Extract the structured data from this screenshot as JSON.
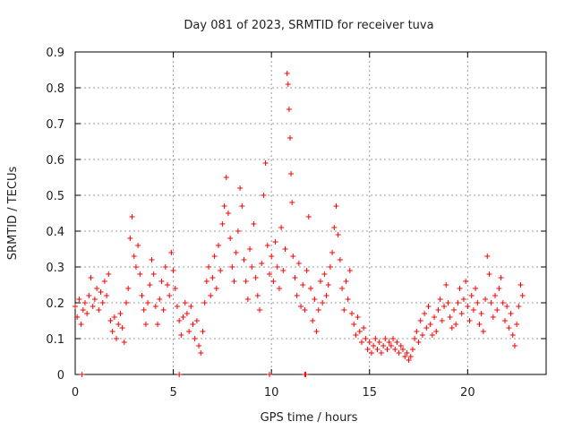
{
  "chart_data": {
    "type": "scatter",
    "title": "Day 081 of 2023, SRMTID for receiver tuva",
    "xlabel": "GPS time / hours",
    "ylabel": "SRMTID / TECUs",
    "xlim": [
      0,
      24
    ],
    "ylim": [
      0,
      0.9
    ],
    "xticks": [
      0,
      5,
      10,
      15,
      20
    ],
    "yticks": [
      0,
      0.1,
      0.2,
      0.3,
      0.4,
      0.5,
      0.6,
      0.7,
      0.8,
      0.9
    ],
    "grid": true,
    "marker": "+",
    "series": [
      {
        "name": "SRMTID",
        "color": "#ff0000",
        "points": [
          [
            0.0,
            0.19
          ],
          [
            0.1,
            0.16
          ],
          [
            0.2,
            0.21
          ],
          [
            0.3,
            0.14
          ],
          [
            0.4,
            0.18
          ],
          [
            0.5,
            0.2
          ],
          [
            0.6,
            0.17
          ],
          [
            0.7,
            0.22
          ],
          [
            0.8,
            0.27
          ],
          [
            0.9,
            0.19
          ],
          [
            1.0,
            0.21
          ],
          [
            1.1,
            0.24
          ],
          [
            1.2,
            0.18
          ],
          [
            1.3,
            0.23
          ],
          [
            1.4,
            0.2
          ],
          [
            1.5,
            0.26
          ],
          [
            1.6,
            0.22
          ],
          [
            1.7,
            0.28
          ],
          [
            1.8,
            0.15
          ],
          [
            1.9,
            0.12
          ],
          [
            2.0,
            0.16
          ],
          [
            2.1,
            0.1
          ],
          [
            2.2,
            0.14
          ],
          [
            2.3,
            0.17
          ],
          [
            2.4,
            0.13
          ],
          [
            2.5,
            0.09
          ],
          [
            2.6,
            0.2
          ],
          [
            2.7,
            0.24
          ],
          [
            2.8,
            0.38
          ],
          [
            2.9,
            0.44
          ],
          [
            3.0,
            0.33
          ],
          [
            3.1,
            0.3
          ],
          [
            3.2,
            0.36
          ],
          [
            3.3,
            0.28
          ],
          [
            3.4,
            0.22
          ],
          [
            3.5,
            0.18
          ],
          [
            3.6,
            0.14
          ],
          [
            3.7,
            0.2
          ],
          [
            3.8,
            0.25
          ],
          [
            3.9,
            0.32
          ],
          [
            4.0,
            0.28
          ],
          [
            4.1,
            0.19
          ],
          [
            4.2,
            0.14
          ],
          [
            4.3,
            0.21
          ],
          [
            4.4,
            0.26
          ],
          [
            4.5,
            0.18
          ],
          [
            4.6,
            0.3
          ],
          [
            4.7,
            0.25
          ],
          [
            4.8,
            0.22
          ],
          [
            4.9,
            0.34
          ],
          [
            5.0,
            0.29
          ],
          [
            5.1,
            0.24
          ],
          [
            5.2,
            0.19
          ],
          [
            5.3,
            0.15
          ],
          [
            5.4,
            0.11
          ],
          [
            5.5,
            0.16
          ],
          [
            5.6,
            0.2
          ],
          [
            5.7,
            0.17
          ],
          [
            5.8,
            0.12
          ],
          [
            5.9,
            0.19
          ],
          [
            6.0,
            0.14
          ],
          [
            6.1,
            0.1
          ],
          [
            6.2,
            0.15
          ],
          [
            6.3,
            0.08
          ],
          [
            6.4,
            0.06
          ],
          [
            6.5,
            0.12
          ],
          [
            6.6,
            0.2
          ],
          [
            6.7,
            0.26
          ],
          [
            6.8,
            0.3
          ],
          [
            6.9,
            0.22
          ],
          [
            7.0,
            0.27
          ],
          [
            7.1,
            0.33
          ],
          [
            7.2,
            0.24
          ],
          [
            7.3,
            0.36
          ],
          [
            7.4,
            0.29
          ],
          [
            7.5,
            0.42
          ],
          [
            7.6,
            0.47
          ],
          [
            7.7,
            0.55
          ],
          [
            7.8,
            0.45
          ],
          [
            7.9,
            0.38
          ],
          [
            8.0,
            0.3
          ],
          [
            8.1,
            0.26
          ],
          [
            8.2,
            0.34
          ],
          [
            8.3,
            0.4
          ],
          [
            8.4,
            0.52
          ],
          [
            8.5,
            0.47
          ],
          [
            8.6,
            0.32
          ],
          [
            8.7,
            0.26
          ],
          [
            8.8,
            0.21
          ],
          [
            8.9,
            0.35
          ],
          [
            9.0,
            0.3
          ],
          [
            9.1,
            0.42
          ],
          [
            9.2,
            0.27
          ],
          [
            9.3,
            0.22
          ],
          [
            9.4,
            0.18
          ],
          [
            9.5,
            0.31
          ],
          [
            9.6,
            0.5
          ],
          [
            9.7,
            0.59
          ],
          [
            9.8,
            0.36
          ],
          [
            9.9,
            0.28
          ],
          [
            10.0,
            0.33
          ],
          [
            10.1,
            0.26
          ],
          [
            10.2,
            0.37
          ],
          [
            10.3,
            0.3
          ],
          [
            10.4,
            0.24
          ],
          [
            10.5,
            0.41
          ],
          [
            10.6,
            0.29
          ],
          [
            10.7,
            0.35
          ],
          [
            10.8,
            0.84
          ],
          [
            10.85,
            0.81
          ],
          [
            10.9,
            0.74
          ],
          [
            10.95,
            0.66
          ],
          [
            11.0,
            0.56
          ],
          [
            11.05,
            0.48
          ],
          [
            11.1,
            0.33
          ],
          [
            11.2,
            0.27
          ],
          [
            11.3,
            0.22
          ],
          [
            11.4,
            0.31
          ],
          [
            11.5,
            0.19
          ],
          [
            11.6,
            0.25
          ],
          [
            11.7,
            0.18
          ],
          [
            11.8,
            0.29
          ],
          [
            11.9,
            0.44
          ],
          [
            12.0,
            0.24
          ],
          [
            12.1,
            0.15
          ],
          [
            12.2,
            0.21
          ],
          [
            12.3,
            0.12
          ],
          [
            12.4,
            0.18
          ],
          [
            12.5,
            0.26
          ],
          [
            12.6,
            0.2
          ],
          [
            12.7,
            0.28
          ],
          [
            12.8,
            0.22
          ],
          [
            12.9,
            0.25
          ],
          [
            13.0,
            0.3
          ],
          [
            13.1,
            0.34
          ],
          [
            13.2,
            0.41
          ],
          [
            13.3,
            0.47
          ],
          [
            13.4,
            0.39
          ],
          [
            13.5,
            0.32
          ],
          [
            13.6,
            0.24
          ],
          [
            13.7,
            0.18
          ],
          [
            13.8,
            0.26
          ],
          [
            13.9,
            0.21
          ],
          [
            14.0,
            0.29
          ],
          [
            14.1,
            0.17
          ],
          [
            14.2,
            0.14
          ],
          [
            14.3,
            0.11
          ],
          [
            14.4,
            0.16
          ],
          [
            14.5,
            0.12
          ],
          [
            14.6,
            0.09
          ],
          [
            14.7,
            0.13
          ],
          [
            14.8,
            0.1
          ],
          [
            14.9,
            0.07
          ],
          [
            15.0,
            0.09
          ],
          [
            15.1,
            0.06
          ],
          [
            15.2,
            0.08
          ],
          [
            15.3,
            0.1
          ],
          [
            15.4,
            0.07
          ],
          [
            15.5,
            0.09
          ],
          [
            15.6,
            0.06
          ],
          [
            15.7,
            0.08
          ],
          [
            15.8,
            0.1
          ],
          [
            15.9,
            0.07
          ],
          [
            16.0,
            0.09
          ],
          [
            16.1,
            0.08
          ],
          [
            16.2,
            0.1
          ],
          [
            16.3,
            0.07
          ],
          [
            16.4,
            0.09
          ],
          [
            16.5,
            0.06
          ],
          [
            16.6,
            0.08
          ],
          [
            16.7,
            0.07
          ],
          [
            16.8,
            0.05
          ],
          [
            16.9,
            0.06
          ],
          [
            17.0,
            0.04
          ],
          [
            17.1,
            0.05
          ],
          [
            17.2,
            0.07
          ],
          [
            17.3,
            0.1
          ],
          [
            17.4,
            0.12
          ],
          [
            17.5,
            0.09
          ],
          [
            17.6,
            0.15
          ],
          [
            17.7,
            0.11
          ],
          [
            17.8,
            0.17
          ],
          [
            17.9,
            0.13
          ],
          [
            18.0,
            0.19
          ],
          [
            18.1,
            0.14
          ],
          [
            18.2,
            0.11
          ],
          [
            18.3,
            0.16
          ],
          [
            18.4,
            0.12
          ],
          [
            18.5,
            0.18
          ],
          [
            18.6,
            0.21
          ],
          [
            18.7,
            0.15
          ],
          [
            18.8,
            0.19
          ],
          [
            18.9,
            0.25
          ],
          [
            19.0,
            0.2
          ],
          [
            19.1,
            0.16
          ],
          [
            19.2,
            0.13
          ],
          [
            19.3,
            0.18
          ],
          [
            19.4,
            0.14
          ],
          [
            19.5,
            0.2
          ],
          [
            19.6,
            0.24
          ],
          [
            19.7,
            0.17
          ],
          [
            19.8,
            0.21
          ],
          [
            19.9,
            0.26
          ],
          [
            20.0,
            0.19
          ],
          [
            20.1,
            0.15
          ],
          [
            20.2,
            0.22
          ],
          [
            20.3,
            0.18
          ],
          [
            20.4,
            0.24
          ],
          [
            20.5,
            0.2
          ],
          [
            20.6,
            0.14
          ],
          [
            20.7,
            0.17
          ],
          [
            20.8,
            0.12
          ],
          [
            20.9,
            0.21
          ],
          [
            21.0,
            0.33
          ],
          [
            21.1,
            0.28
          ],
          [
            21.2,
            0.2
          ],
          [
            21.3,
            0.16
          ],
          [
            21.4,
            0.22
          ],
          [
            21.5,
            0.18
          ],
          [
            21.6,
            0.24
          ],
          [
            21.7,
            0.27
          ],
          [
            21.8,
            0.2
          ],
          [
            21.9,
            0.15
          ],
          [
            22.0,
            0.19
          ],
          [
            22.1,
            0.13
          ],
          [
            22.2,
            0.17
          ],
          [
            22.3,
            0.11
          ],
          [
            22.4,
            0.08
          ],
          [
            22.5,
            0.14
          ],
          [
            22.6,
            0.19
          ],
          [
            22.7,
            0.25
          ],
          [
            22.8,
            0.22
          ],
          [
            0.35,
            0.0
          ],
          [
            5.3,
            0.0
          ],
          [
            9.9,
            0.0
          ],
          [
            11.7,
            0.0
          ],
          [
            11.75,
            0.0
          ]
        ]
      }
    ]
  }
}
